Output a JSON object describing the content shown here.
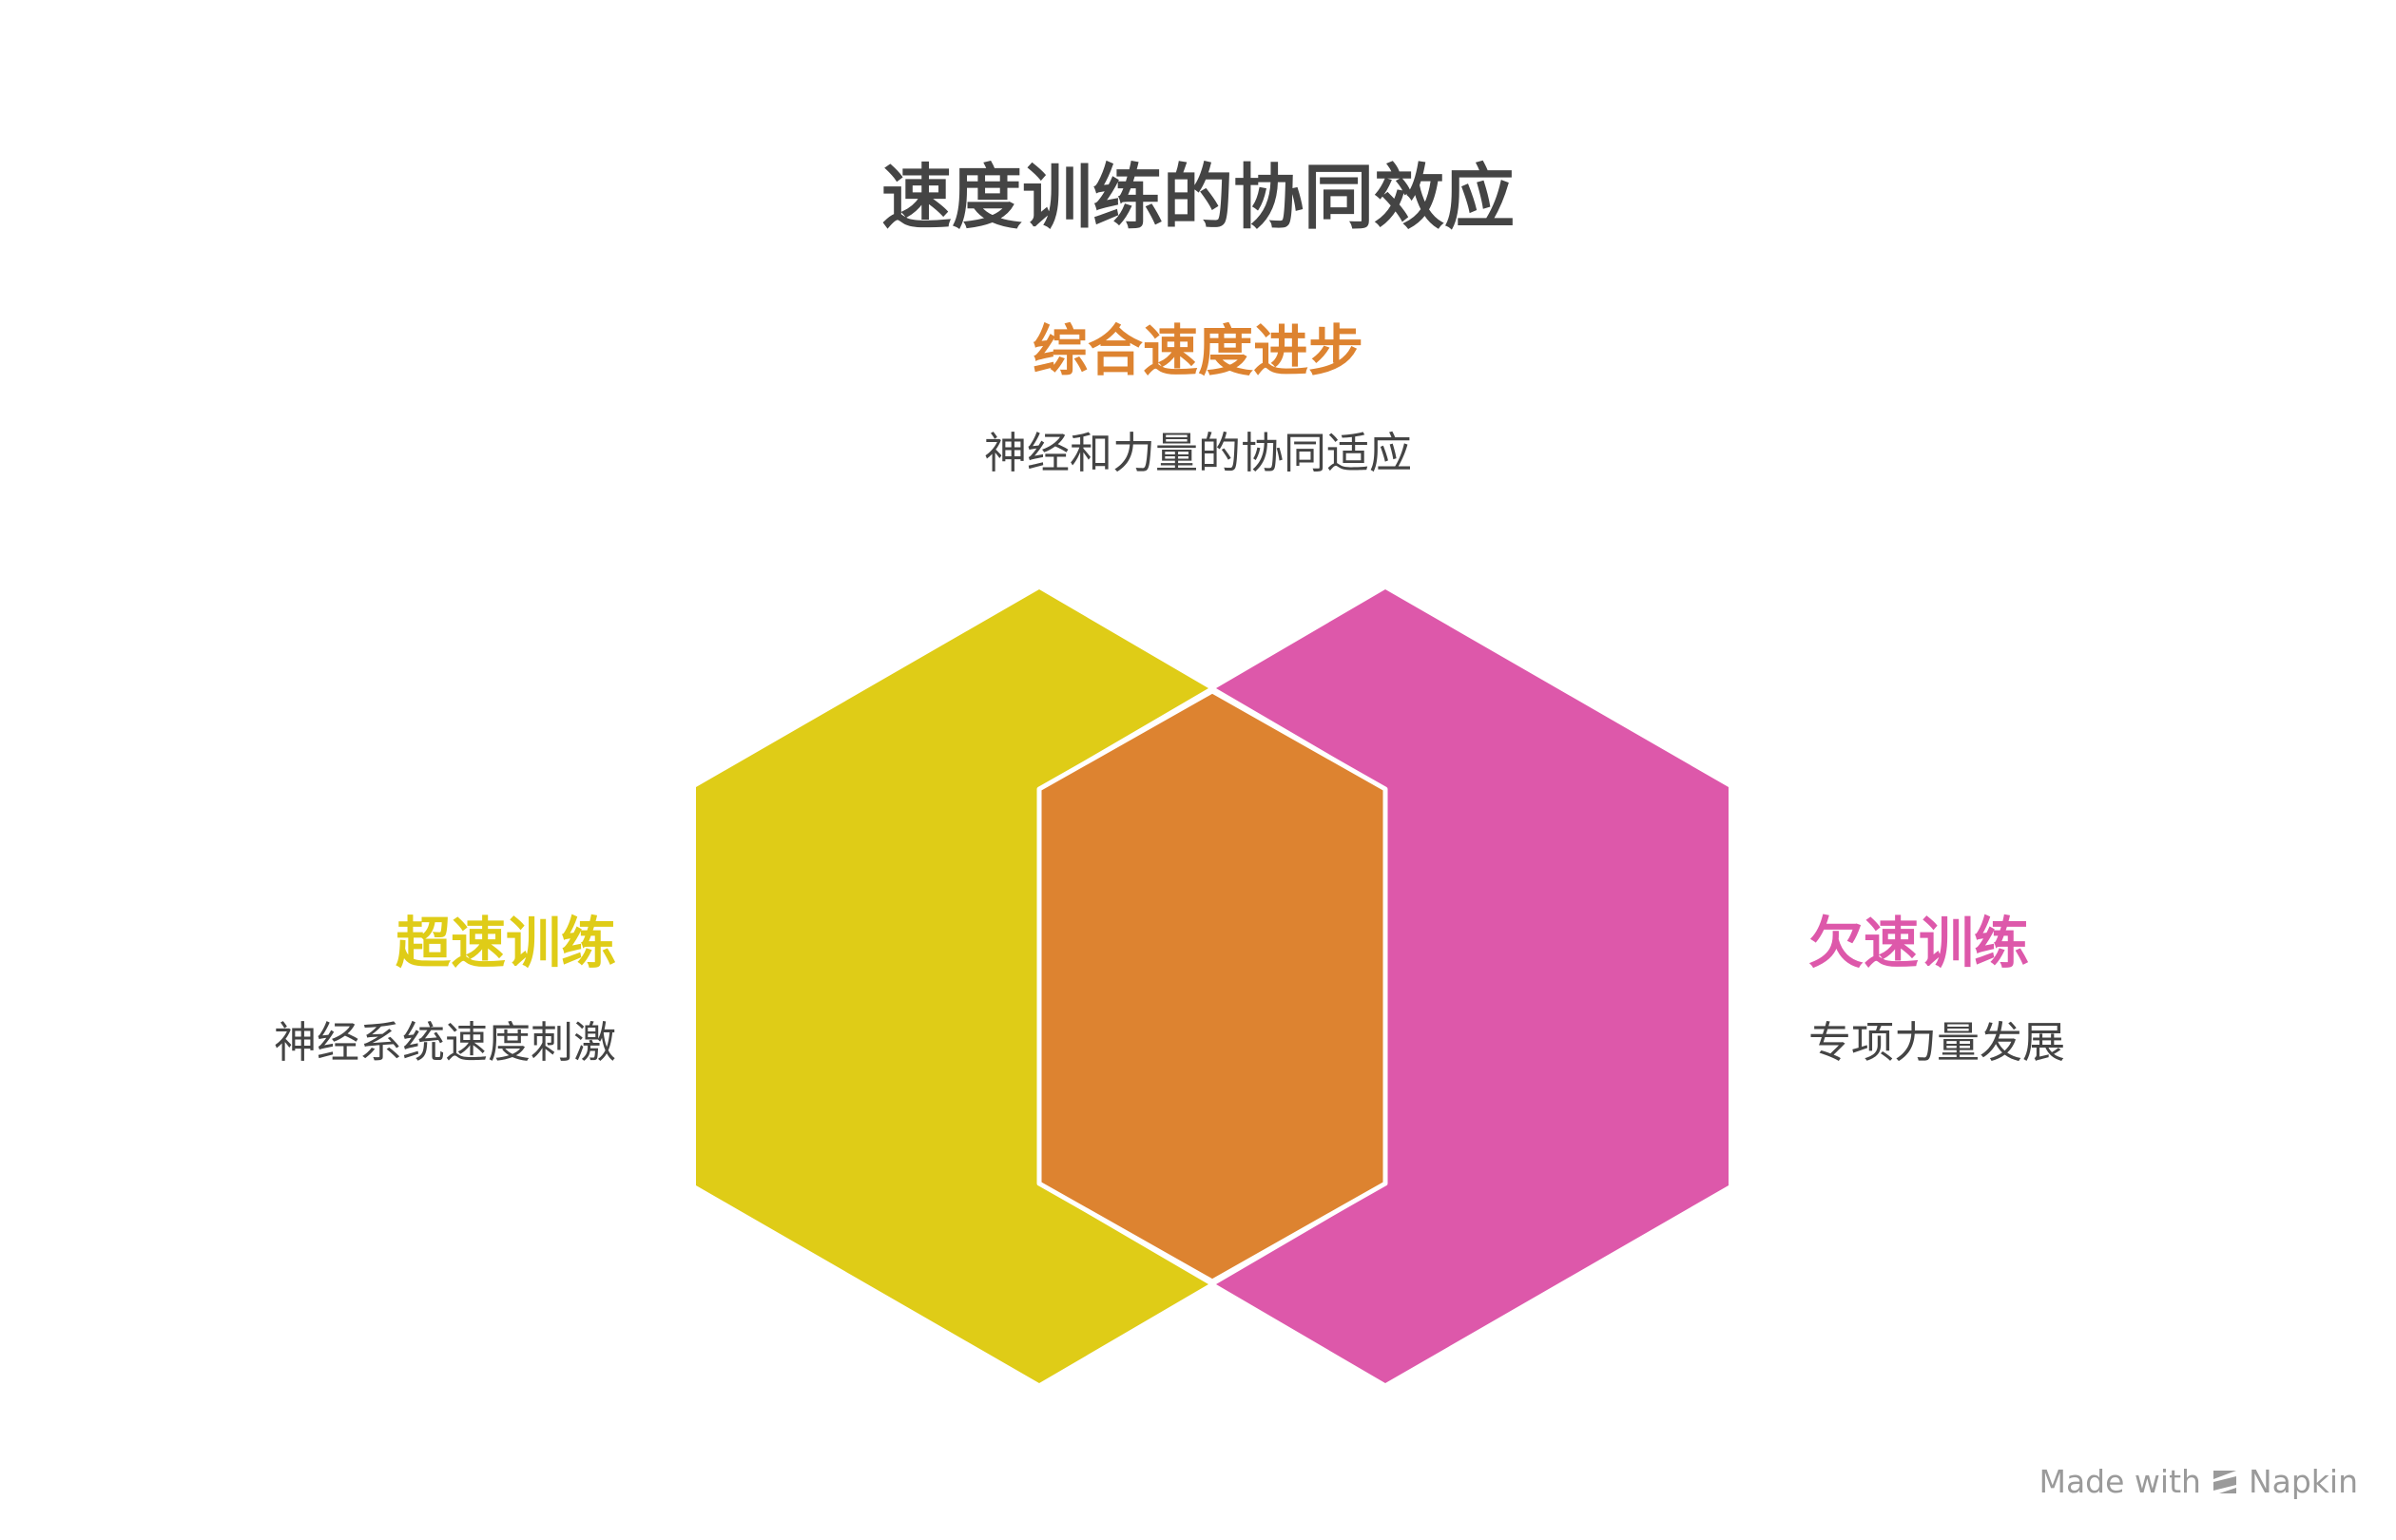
{
  "title": "速度训练的协同效应",
  "sets": [
    {
      "id": "overspeed",
      "heading": "超速训练",
      "description": "神经系统速度刺激",
      "color": "#dfcc17"
    },
    {
      "id": "underspeed",
      "heading": "欠速训练",
      "description": "专项力量发展",
      "color": "#dd58aa"
    }
  ],
  "intersection": {
    "heading": "综合速度进步",
    "description": "神经和力量的协同适应",
    "color": "#dd8330"
  },
  "footer": {
    "made_with": "Made with",
    "brand": "Napkin",
    "icon": "napkin-logo-icon"
  }
}
